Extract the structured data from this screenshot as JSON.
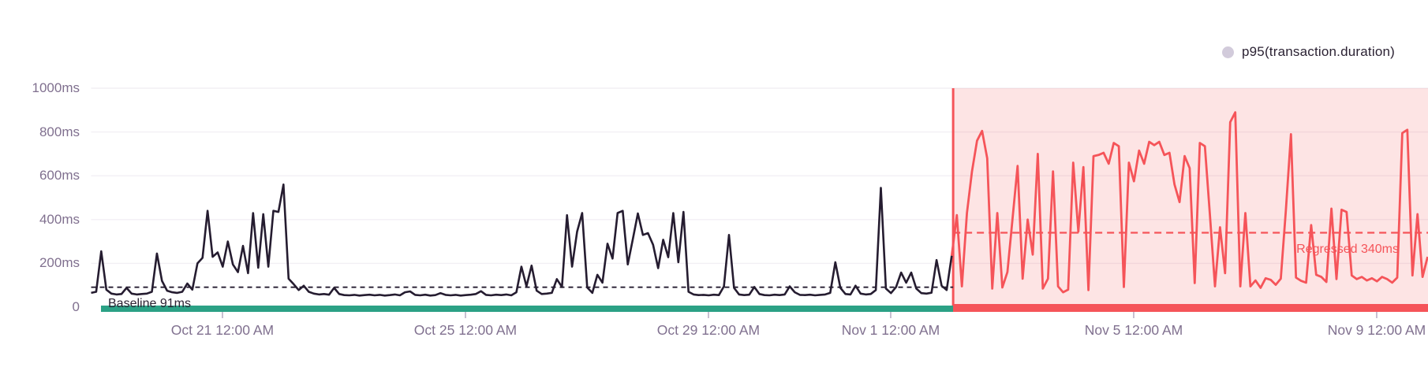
{
  "chart_data": {
    "type": "line",
    "legend": [
      {
        "label": "p95(transaction.duration)",
        "dot_color": "#D2CBDB"
      }
    ],
    "y_axis": {
      "unit": "ms",
      "min": 0,
      "max": 1000,
      "tick_values": [
        1000,
        800,
        600,
        400,
        200,
        0
      ],
      "ticks": [
        "1000ms",
        "800ms",
        "600ms",
        "400ms",
        "200ms",
        "0"
      ],
      "gridline_values": [
        1000,
        800,
        600,
        400,
        200
      ]
    },
    "x_axis": {
      "total_days": 22.01,
      "ticks": [
        {
          "label": "Oct 21 12:00 AM",
          "day": 2.162
        },
        {
          "label": "Oct 25 12:00 AM",
          "day": 6.162
        },
        {
          "label": "Oct 29 12:00 AM",
          "day": 10.162
        },
        {
          "label": "Nov 1 12:00 AM",
          "day": 13.162
        },
        {
          "label": "Nov 5 12:00 AM",
          "day": 17.162
        },
        {
          "label": "Nov 9 12:00 AM",
          "day": 21.162
        }
      ]
    },
    "baseline": {
      "label": "Baseline 91ms",
      "value_ms": 91,
      "start_day": 0.162,
      "end_day": 14.19
    },
    "regression": {
      "label": "Regressed 340ms",
      "value_ms": 340,
      "start_day": 14.19,
      "end_day": 22.01
    },
    "colors": {
      "line": "#251C30",
      "baseline_bar": "#2BA185",
      "regression": "#F55459",
      "regression_fill_opacity": 0.16,
      "axis_text": "#80708F",
      "grid": "#F2EFF4",
      "tick_mark": "#B5AAC2",
      "legend_dot": "#D2CBDB",
      "dark_text": "#2B2233"
    },
    "series": {
      "name": "p95(transaction.duration)",
      "interval_hours": 2,
      "start_day": 0,
      "breakpoint_index": 170,
      "values_ms": [
        65,
        70,
        255,
        80,
        62,
        58,
        60,
        88,
        62,
        58,
        60,
        62,
        70,
        245,
        120,
        75,
        68,
        65,
        70,
        108,
        80,
        200,
        225,
        440,
        230,
        250,
        185,
        300,
        195,
        160,
        280,
        155,
        430,
        180,
        425,
        185,
        440,
        435,
        560,
        130,
        105,
        78,
        98,
        70,
        62,
        58,
        60,
        57,
        88,
        60,
        55,
        54,
        56,
        53,
        55,
        57,
        54,
        56,
        53,
        55,
        58,
        54,
        68,
        72,
        56,
        54,
        57,
        53,
        55,
        64,
        56,
        54,
        56,
        53,
        55,
        57,
        60,
        73,
        56,
        54,
        57,
        55,
        58,
        54,
        68,
        185,
        95,
        190,
        75,
        60,
        62,
        65,
        128,
        92,
        420,
        185,
        345,
        430,
        90,
        65,
        148,
        112,
        290,
        222,
        430,
        440,
        195,
        310,
        428,
        330,
        338,
        285,
        178,
        308,
        228,
        430,
        205,
        435,
        70,
        58,
        55,
        56,
        54,
        57,
        55,
        95,
        330,
        88,
        58,
        55,
        57,
        92,
        60,
        55,
        54,
        57,
        55,
        58,
        95,
        68,
        56,
        55,
        57,
        54,
        56,
        58,
        65,
        205,
        88,
        60,
        58,
        98,
        62,
        58,
        60,
        78,
        545,
        85,
        64,
        92,
        158,
        112,
        158,
        85,
        64,
        62,
        66,
        215,
        98,
        78,
        235,
        420,
        95,
        430,
        620,
        760,
        805,
        680,
        85,
        430,
        90,
        160,
        400,
        645,
        130,
        400,
        240,
        700,
        85,
        130,
        620,
        95,
        68,
        80,
        660,
        345,
        640,
        78,
        690,
        695,
        705,
        655,
        750,
        735,
        92,
        660,
        575,
        715,
        655,
        755,
        740,
        755,
        695,
        705,
        560,
        480,
        690,
        635,
        110,
        750,
        735,
        420,
        95,
        365,
        155,
        845,
        890,
        95,
        430,
        95,
        122,
        88,
        132,
        125,
        102,
        130,
        440,
        790,
        135,
        120,
        112,
        375,
        148,
        138,
        115,
        450,
        128,
        445,
        435,
        145,
        128,
        138,
        122,
        132,
        118,
        138,
        128,
        112,
        135,
        795,
        810,
        145,
        425,
        138,
        230
      ]
    }
  }
}
